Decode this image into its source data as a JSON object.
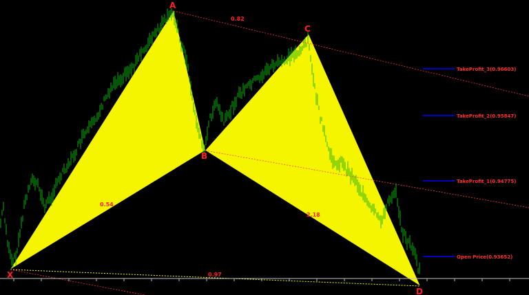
{
  "chart": {
    "top_caption": "",
    "colors": {
      "background": "#000000",
      "candle": "#00c800",
      "pattern_fill": "#ffff00",
      "pattern_edge": "#000000",
      "level_line": "#0000ff",
      "level_text": "#ff3030",
      "point_label": "#ff2020",
      "ratio_text": "#ff2020",
      "trend_line": "#ff2020",
      "dotted_line": "#ffff00"
    },
    "points": {
      "x": "X",
      "a": "A",
      "b": "B",
      "c": "C",
      "d": "D"
    },
    "ratios": {
      "xab": "0.54",
      "abc": "0.82",
      "bcd": "2.18",
      "xad": "0.97"
    },
    "levels": [
      {
        "label": "TakeProfit_3(0.96603)",
        "price": 0.96603
      },
      {
        "label": "TakeProfit_2(0.95847)",
        "price": 0.95847
      },
      {
        "label": "TakeProfit_1(0.94775)",
        "price": 0.94775
      },
      {
        "label": "Open Price(0.93652)",
        "price": 0.93652
      }
    ]
  }
}
